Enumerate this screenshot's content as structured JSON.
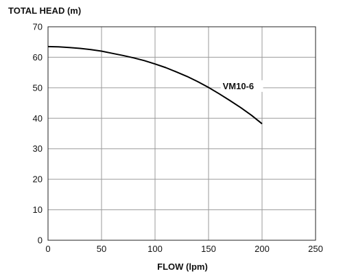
{
  "chart_data": {
    "type": "line",
    "xlabel": "FLOW (lpm)",
    "ylabel": "TOTAL HEAD (m)",
    "xlim": [
      0,
      250
    ],
    "ylim": [
      0,
      70
    ],
    "x_ticks": [
      0,
      50,
      100,
      150,
      200,
      250
    ],
    "y_ticks": [
      0,
      10,
      20,
      30,
      40,
      50,
      60,
      70
    ],
    "grid": true,
    "series": [
      {
        "name": "VM10-6",
        "x": [
          0,
          10,
          20,
          30,
          40,
          50,
          60,
          70,
          80,
          90,
          100,
          110,
          120,
          130,
          140,
          150,
          160,
          170,
          180,
          190,
          200
        ],
        "y": [
          63.5,
          63.4,
          63.2,
          62.9,
          62.5,
          62.0,
          61.3,
          60.6,
          59.8,
          58.9,
          57.8,
          56.6,
          55.2,
          53.7,
          52.0,
          50.1,
          48.0,
          45.8,
          43.5,
          41.0,
          38.2
        ]
      }
    ]
  }
}
